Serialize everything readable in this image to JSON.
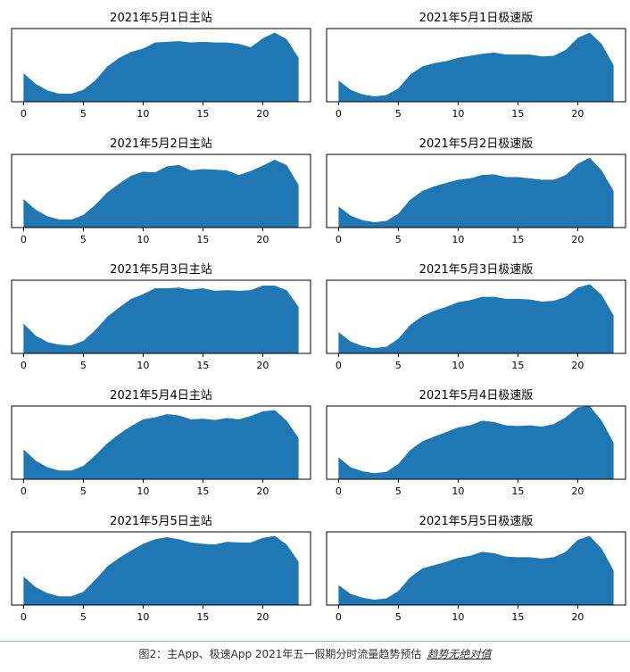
{
  "caption": {
    "text": "图2：主App、极速App 2021年五一假期分时流量趋势预估",
    "source": "趋势无绝对值"
  },
  "style": {
    "fill_color": "#1f77b4",
    "axis_color": "#000000"
  },
  "chart_data": [
    {
      "type": "area",
      "title": "2021年5月1日主站",
      "xlim": [
        -1,
        24
      ],
      "ylim": [
        0,
        1.1
      ],
      "xticks": [
        0,
        5,
        10,
        15,
        20
      ],
      "x": [
        0,
        1,
        2,
        3,
        4,
        5,
        6,
        7,
        8,
        9,
        10,
        11,
        12,
        13,
        14,
        15,
        16,
        17,
        18,
        19,
        20,
        21,
        22,
        23
      ],
      "values": [
        0.43,
        0.27,
        0.17,
        0.12,
        0.12,
        0.18,
        0.32,
        0.53,
        0.66,
        0.75,
        0.8,
        0.89,
        0.9,
        0.91,
        0.89,
        0.9,
        0.89,
        0.89,
        0.87,
        0.82,
        0.95,
        1.04,
        0.94,
        0.66
      ]
    },
    {
      "type": "area",
      "title": "2021年5月1日极速版",
      "xlim": [
        -1,
        24
      ],
      "ylim": [
        0,
        1.1
      ],
      "xticks": [
        0,
        5,
        10,
        15,
        20
      ],
      "x": [
        0,
        1,
        2,
        3,
        4,
        5,
        6,
        7,
        8,
        9,
        10,
        11,
        12,
        13,
        14,
        15,
        16,
        17,
        18,
        19,
        20,
        21,
        22,
        23
      ],
      "values": [
        0.32,
        0.18,
        0.11,
        0.08,
        0.1,
        0.2,
        0.41,
        0.53,
        0.58,
        0.61,
        0.66,
        0.69,
        0.72,
        0.74,
        0.71,
        0.71,
        0.71,
        0.68,
        0.69,
        0.78,
        0.96,
        1.04,
        0.87,
        0.55
      ]
    },
    {
      "type": "area",
      "title": "2021年5月2日主站",
      "xlim": [
        -1,
        24
      ],
      "ylim": [
        0,
        1.1
      ],
      "xticks": [
        0,
        5,
        10,
        15,
        20
      ],
      "x": [
        0,
        1,
        2,
        3,
        4,
        5,
        6,
        7,
        8,
        9,
        10,
        11,
        12,
        13,
        14,
        15,
        16,
        17,
        18,
        19,
        20,
        21,
        22,
        23
      ],
      "values": [
        0.43,
        0.27,
        0.17,
        0.12,
        0.12,
        0.19,
        0.34,
        0.53,
        0.66,
        0.78,
        0.84,
        0.83,
        0.92,
        0.94,
        0.86,
        0.88,
        0.87,
        0.86,
        0.79,
        0.85,
        0.93,
        1.02,
        0.94,
        0.64
      ]
    },
    {
      "type": "area",
      "title": "2021年5月2日极速版",
      "xlim": [
        -1,
        24
      ],
      "ylim": [
        0,
        1.1
      ],
      "xticks": [
        0,
        5,
        10,
        15,
        20
      ],
      "x": [
        0,
        1,
        2,
        3,
        4,
        5,
        6,
        7,
        8,
        9,
        10,
        11,
        12,
        13,
        14,
        15,
        16,
        17,
        18,
        19,
        20,
        21,
        22,
        23
      ],
      "values": [
        0.32,
        0.18,
        0.11,
        0.08,
        0.1,
        0.21,
        0.42,
        0.55,
        0.62,
        0.67,
        0.72,
        0.74,
        0.79,
        0.8,
        0.76,
        0.76,
        0.74,
        0.72,
        0.72,
        0.79,
        0.96,
        1.05,
        0.86,
        0.55
      ]
    },
    {
      "type": "area",
      "title": "2021年5月3日主站",
      "xlim": [
        -1,
        24
      ],
      "ylim": [
        0,
        1.1
      ],
      "xticks": [
        0,
        5,
        10,
        15,
        20
      ],
      "x": [
        0,
        1,
        2,
        3,
        4,
        5,
        6,
        7,
        8,
        9,
        10,
        11,
        12,
        13,
        14,
        15,
        16,
        17,
        18,
        19,
        20,
        21,
        22,
        23
      ],
      "values": [
        0.45,
        0.27,
        0.17,
        0.13,
        0.12,
        0.19,
        0.35,
        0.55,
        0.69,
        0.82,
        0.89,
        0.98,
        0.98,
        0.99,
        0.96,
        0.98,
        0.94,
        0.95,
        0.94,
        0.95,
        1.02,
        1.02,
        0.95,
        0.7
      ]
    },
    {
      "type": "area",
      "title": "2021年5月3日极速版",
      "xlim": [
        -1,
        24
      ],
      "ylim": [
        0,
        1.1
      ],
      "xticks": [
        0,
        5,
        10,
        15,
        20
      ],
      "x": [
        0,
        1,
        2,
        3,
        4,
        5,
        6,
        7,
        8,
        9,
        10,
        11,
        12,
        13,
        14,
        15,
        16,
        17,
        18,
        19,
        20,
        21,
        22,
        23
      ],
      "values": [
        0.32,
        0.18,
        0.11,
        0.08,
        0.1,
        0.22,
        0.43,
        0.56,
        0.64,
        0.7,
        0.77,
        0.8,
        0.85,
        0.85,
        0.82,
        0.82,
        0.81,
        0.78,
        0.79,
        0.85,
        0.99,
        1.04,
        0.88,
        0.57
      ]
    },
    {
      "type": "area",
      "title": "2021年5月4日主站",
      "xlim": [
        -1,
        24
      ],
      "ylim": [
        0,
        1.1
      ],
      "xticks": [
        0,
        5,
        10,
        15,
        20
      ],
      "x": [
        0,
        1,
        2,
        3,
        4,
        5,
        6,
        7,
        8,
        9,
        10,
        11,
        12,
        13,
        14,
        15,
        16,
        17,
        18,
        19,
        20,
        21,
        22,
        23
      ],
      "values": [
        0.45,
        0.28,
        0.18,
        0.13,
        0.13,
        0.2,
        0.36,
        0.54,
        0.68,
        0.8,
        0.9,
        0.93,
        0.98,
        0.96,
        0.9,
        0.91,
        0.89,
        0.92,
        0.9,
        0.95,
        1.02,
        1.04,
        0.88,
        0.62
      ]
    },
    {
      "type": "area",
      "title": "2021年5月4日极速版",
      "xlim": [
        -1,
        24
      ],
      "ylim": [
        0,
        1.1
      ],
      "xticks": [
        0,
        5,
        10,
        15,
        20
      ],
      "x": [
        0,
        1,
        2,
        3,
        4,
        5,
        6,
        7,
        8,
        9,
        10,
        11,
        12,
        13,
        14,
        15,
        16,
        17,
        18,
        19,
        20,
        21,
        22,
        23
      ],
      "values": [
        0.33,
        0.18,
        0.12,
        0.09,
        0.11,
        0.23,
        0.44,
        0.57,
        0.64,
        0.71,
        0.78,
        0.81,
        0.88,
        0.86,
        0.81,
        0.8,
        0.81,
        0.79,
        0.83,
        0.93,
        1.08,
        1.1,
        0.88,
        0.55
      ]
    },
    {
      "type": "area",
      "title": "2021年5月5日主站",
      "xlim": [
        -1,
        24
      ],
      "ylim": [
        0,
        1.1
      ],
      "xticks": [
        0,
        5,
        10,
        15,
        20
      ],
      "x": [
        0,
        1,
        2,
        3,
        4,
        5,
        6,
        7,
        8,
        9,
        10,
        11,
        12,
        13,
        14,
        15,
        16,
        17,
        18,
        19,
        20,
        21,
        22,
        23
      ],
      "values": [
        0.43,
        0.27,
        0.18,
        0.13,
        0.13,
        0.2,
        0.38,
        0.58,
        0.71,
        0.82,
        0.92,
        0.99,
        1.02,
        0.99,
        0.94,
        0.92,
        0.91,
        0.95,
        0.94,
        0.94,
        1.01,
        1.04,
        0.91,
        0.65
      ]
    },
    {
      "type": "area",
      "title": "2021年5月5日极速版",
      "xlim": [
        -1,
        24
      ],
      "ylim": [
        0,
        1.1
      ],
      "xticks": [
        0,
        5,
        10,
        15,
        20
      ],
      "x": [
        0,
        1,
        2,
        3,
        4,
        5,
        6,
        7,
        8,
        9,
        10,
        11,
        12,
        13,
        14,
        15,
        16,
        17,
        18,
        19,
        20,
        21,
        22,
        23
      ],
      "values": [
        0.3,
        0.17,
        0.11,
        0.08,
        0.1,
        0.21,
        0.42,
        0.55,
        0.6,
        0.65,
        0.71,
        0.74,
        0.8,
        0.78,
        0.73,
        0.72,
        0.72,
        0.7,
        0.72,
        0.8,
        0.98,
        1.04,
        0.85,
        0.52
      ]
    }
  ]
}
